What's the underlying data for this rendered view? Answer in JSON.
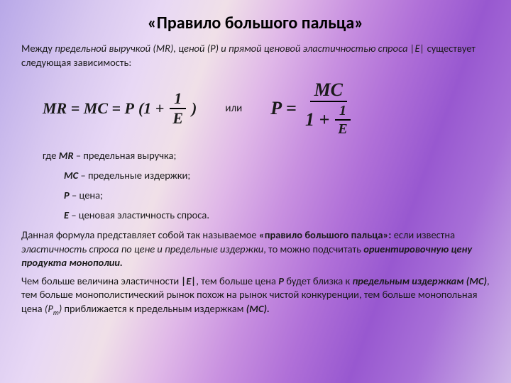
{
  "title": "«Правило большого пальца»",
  "intro_prefix": "Между ",
  "intro_em": "предельной выручкой (MR), ценой (P) и прямой ценовой эластичностью спроса |E| ",
  "intro_suffix": "существует следующая зависимость:",
  "formula1": {
    "lhs": "MR = MC = P",
    "open": "(1 +",
    "num": "1",
    "den": "E",
    "close": ")"
  },
  "ili": "или",
  "formula2": {
    "lhs": "P",
    "eq": "=",
    "num": "MC",
    "den_a": "1 +",
    "den_num": "1",
    "den_den": "E"
  },
  "def_where": "где ",
  "defs": [
    {
      "sym": "MR",
      "text": " – предельная выручка;"
    },
    {
      "sym": "MC",
      "text": " – предельные издержки;"
    },
    {
      "sym": "P",
      "text": " – цена;"
    },
    {
      "sym": "E",
      "text": " – ценовая эластичность спроса."
    }
  ],
  "p1_a": "Данная формула представляет собой так называемое ",
  "p1_b": "«правило большого пальца»: ",
  "p1_c": "если известна ",
  "p1_d": "эластичность спроса по цене и предельные издержки",
  "p1_e": ", то можно подсчитать ",
  "p1_f": "ориентировочную цену продукта монополии.",
  "p2_a": "Чем больше величина эластичности ",
  "p2_b": "|E|",
  "p2_c": ", тем больше цена ",
  "p2_d": "P",
  "p2_e": " будет близка к ",
  "p2_f": "предельным издержкам (MC)",
  "p2_g": ", тем больше монополистический рынок похож на рынок чистой конкуренции, тем больше монопольная цена ",
  "p2_h": "(P",
  "p2_hs": "m",
  "p2_hc": ")",
  "p2_i": " приближается к предельным издержкам ",
  "p2_j": "(MC)."
}
